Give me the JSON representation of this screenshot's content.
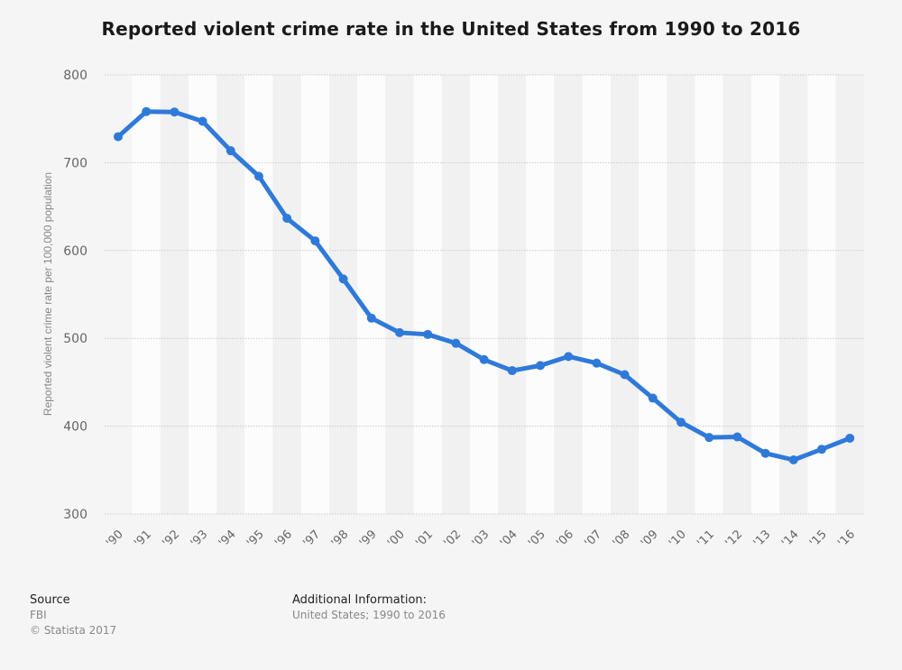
{
  "title": "Reported violent crime rate in the United States from 1990 to 2016",
  "chart_data": {
    "type": "line",
    "title": "Reported violent crime rate in the United States from 1990 to 2016",
    "xlabel": "",
    "ylabel": "Reported violent crime rate per 100,000 population",
    "categories": [
      "'90",
      "'91",
      "'92",
      "'93",
      "'94",
      "'95",
      "'96",
      "'97",
      "'98",
      "'99",
      "'00",
      "'01",
      "'02",
      "'03",
      "'04",
      "'05",
      "'06",
      "'07",
      "'08",
      "'09",
      "'10",
      "'11",
      "'12",
      "'13",
      "'14",
      "'15",
      "'16"
    ],
    "series": [
      {
        "name": "Violent crime rate",
        "values": [
          729.6,
          758.2,
          757.7,
          747.1,
          713.6,
          684.5,
          636.6,
          611.0,
          567.6,
          523.0,
          506.5,
          504.5,
          494.4,
          475.8,
          463.2,
          469.0,
          479.3,
          471.8,
          458.6,
          431.9,
          404.5,
          387.1,
          387.8,
          369.1,
          361.6,
          373.7,
          386.3
        ]
      }
    ],
    "yticks": [
      300,
      400,
      500,
      600,
      700,
      800
    ],
    "ylim": [
      300,
      800
    ],
    "grid": true,
    "line_color": "#2f7ad9"
  },
  "footer": {
    "source_heading": "Source",
    "source_name": "FBI",
    "copyright": "© Statista 2017",
    "info_heading": "Additional Information:",
    "info_text": "United States; 1990 to 2016"
  }
}
